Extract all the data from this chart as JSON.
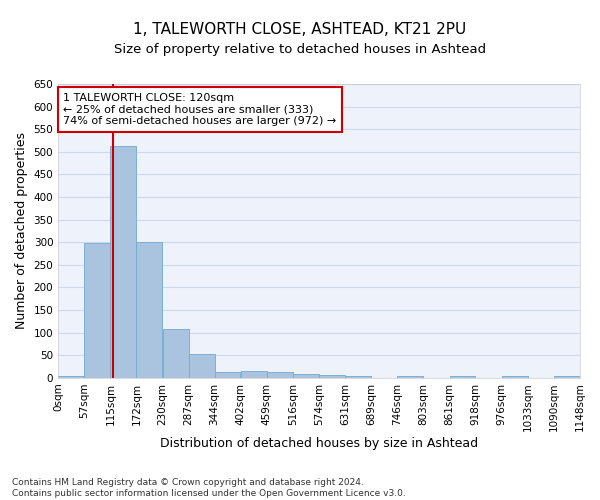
{
  "title1": "1, TALEWORTH CLOSE, ASHTEAD, KT21 2PU",
  "title2": "Size of property relative to detached houses in Ashtead",
  "xlabel": "Distribution of detached houses by size in Ashtead",
  "ylabel": "Number of detached properties",
  "bin_edges": [
    0,
    57,
    115,
    172,
    230,
    287,
    344,
    402,
    459,
    516,
    574,
    631,
    689,
    746,
    803,
    861,
    918,
    976,
    1033,
    1090,
    1148
  ],
  "bin_labels": [
    "0sqm",
    "57sqm",
    "115sqm",
    "172sqm",
    "230sqm",
    "287sqm",
    "344sqm",
    "402sqm",
    "459sqm",
    "516sqm",
    "574sqm",
    "631sqm",
    "689sqm",
    "746sqm",
    "803sqm",
    "861sqm",
    "918sqm",
    "976sqm",
    "1033sqm",
    "1090sqm",
    "1148sqm"
  ],
  "bar_heights": [
    5,
    298,
    512,
    300,
    107,
    53,
    14,
    15,
    13,
    9,
    7,
    5,
    0,
    5,
    0,
    5,
    0,
    5,
    0,
    5
  ],
  "bar_color": "#aac4e0",
  "bar_edge_color": "#7aafd4",
  "grid_color": "#d0d8f0",
  "property_size": 120,
  "vline_color": "#cc0000",
  "annotation_text": "1 TALEWORTH CLOSE: 120sqm\n← 25% of detached houses are smaller (333)\n74% of semi-detached houses are larger (972) →",
  "annotation_box_color": "#ffffff",
  "annotation_border_color": "#cc0000",
  "ylim": [
    0,
    650
  ],
  "yticks": [
    0,
    50,
    100,
    150,
    200,
    250,
    300,
    350,
    400,
    450,
    500,
    550,
    600,
    650
  ],
  "footer_text": "Contains HM Land Registry data © Crown copyright and database right 2024.\nContains public sector information licensed under the Open Government Licence v3.0.",
  "bg_color": "#eef2fb",
  "fig_bg_color": "#ffffff",
  "title1_fontsize": 11,
  "title2_fontsize": 9.5,
  "xlabel_fontsize": 9,
  "ylabel_fontsize": 9,
  "tick_fontsize": 7.5,
  "footer_fontsize": 6.5,
  "annotation_fontsize": 8
}
